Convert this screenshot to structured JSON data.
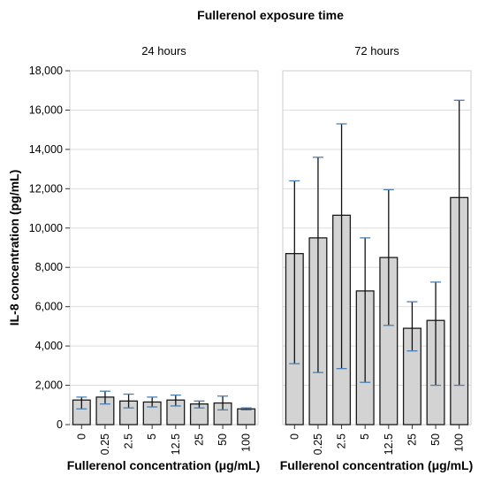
{
  "chart_data": {
    "type": "bar",
    "title": "Fullerenol exposure time",
    "ylabel": "IL-8 concentration (pg/mL)",
    "xlabel": "Fullerenol concentration (μg/mL)",
    "ylim": [
      0,
      18000
    ],
    "yticks": [
      "0",
      "2,000",
      "4,000",
      "6,000",
      "8,000",
      "10,000",
      "12,000",
      "14,000",
      "16,000",
      "18,000"
    ],
    "ytick_values": [
      0,
      2000,
      4000,
      6000,
      8000,
      10000,
      12000,
      14000,
      16000,
      18000
    ],
    "grid": true,
    "categories": [
      "0",
      "0.25",
      "2.5",
      "5",
      "12.5",
      "25",
      "50",
      "100"
    ],
    "panels": [
      {
        "label": "24 hours",
        "values": [
          1250,
          1400,
          1200,
          1150,
          1250,
          1050,
          1100,
          800
        ],
        "err_low": [
          800,
          1050,
          850,
          900,
          950,
          850,
          750,
          750
        ],
        "err_high": [
          1400,
          1700,
          1550,
          1400,
          1500,
          1200,
          1450,
          850
        ]
      },
      {
        "label": "72 hours",
        "values": [
          8700,
          9500,
          10650,
          6800,
          8500,
          4900,
          5300,
          11550
        ],
        "err_low": [
          3100,
          2650,
          2850,
          2150,
          5050,
          3750,
          2000,
          2000
        ],
        "err_high": [
          12400,
          13600,
          15300,
          9500,
          11950,
          6250,
          7250,
          16500
        ]
      }
    ],
    "colors": {
      "bar_fill": "#d3d3d3",
      "bar_stroke": "#1a1a1a",
      "cap": "#4a7fb5",
      "grid": "#dddddd"
    }
  }
}
